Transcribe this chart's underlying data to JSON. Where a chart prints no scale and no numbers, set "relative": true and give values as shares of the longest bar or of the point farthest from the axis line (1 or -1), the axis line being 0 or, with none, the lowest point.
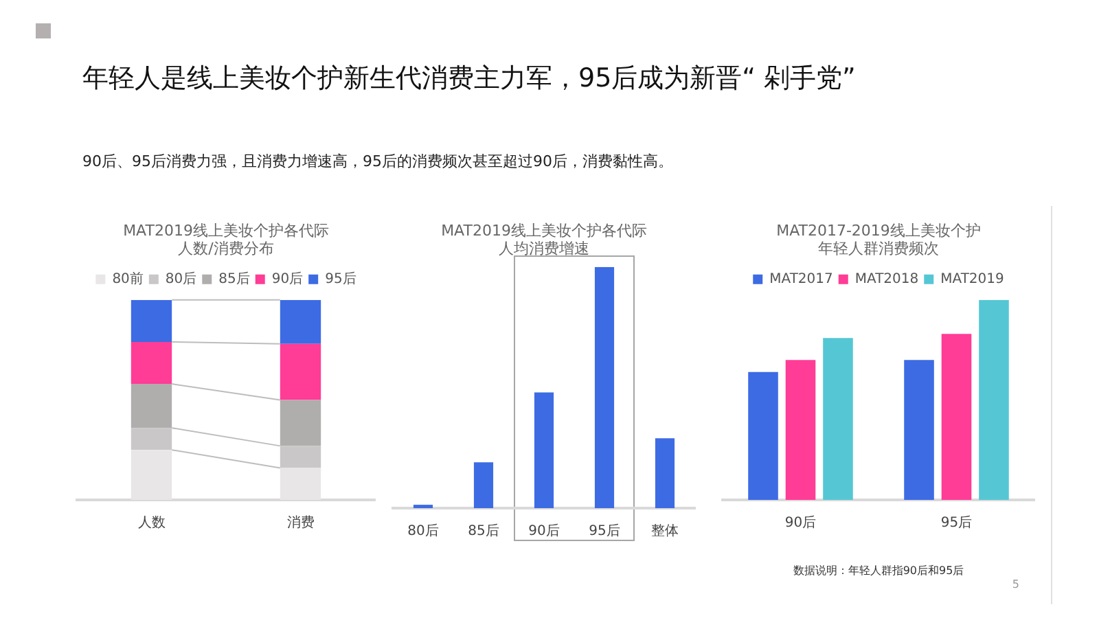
{
  "chart_data": [
    {
      "type": "other",
      "title": "年轻人是线上美妆个护新生代消费主力军，95后成为新晋“ 剁手党”",
      "subtitle": "90后、95后消费力强，且消费力增速高，95后的消费频次甚至超过90后，消费黏性高。",
      "annotations": [
        "5"
      ]
    },
    {
      "type": "bar",
      "title": "MAT2019线上美妆个护各代际人数/消费分布",
      "relative": true,
      "stacked": true,
      "legend": "top",
      "categories": [
        "人数",
        "消费"
      ],
      "series": [
        {
          "name": "80前",
          "color": "#e8e6e6",
          "values": [
            0.25,
            0.16
          ]
        },
        {
          "name": "80后",
          "color": "#c9c7c7",
          "values": [
            0.11,
            0.11
          ]
        },
        {
          "name": "85后",
          "color": "#b0adad",
          "values": [
            0.22,
            0.23
          ]
        },
        {
          "name": "90后",
          "color": "#ff3c96",
          "values": [
            0.21,
            0.28
          ]
        },
        {
          "name": "95后",
          "color": "#3d6be3",
          "values": [
            0.21,
            0.22
          ]
        }
      ]
    },
    {
      "type": "bar",
      "title": "MAT2019线上美妆个护各代际人均消费增速",
      "relative": true,
      "categories": [
        "80后",
        "85后",
        "90后",
        "95后",
        "整体"
      ],
      "values": [
        0.014,
        0.19,
        0.48,
        1,
        0.29
      ],
      "color": "#3d6be3"
    },
    {
      "type": "bar",
      "title": "MAT2017-2019线上美妆个护年轻人群消费频次",
      "relative": true,
      "legend": "top",
      "categories": [
        "90后",
        "95后"
      ],
      "series": [
        {
          "name": "MAT2017",
          "color": "#3d6be3",
          "values": [
            0.64,
            0.7
          ]
        },
        {
          "name": "MAT2018",
          "color": "#ff3c96",
          "values": [
            0.7,
            0.83
          ]
        },
        {
          "name": "MAT2019",
          "color": "#55c7d4",
          "values": [
            0.81,
            1
          ]
        }
      ],
      "annotations": [
        "数据说明：年轻人群指90后和95后"
      ]
    }
  ]
}
